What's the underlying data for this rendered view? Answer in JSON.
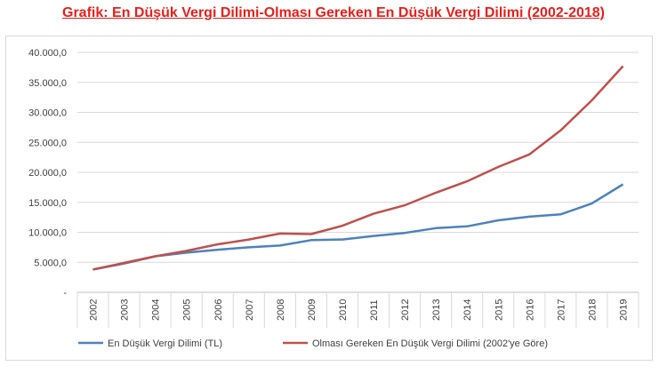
{
  "title": "Grafik: En Düşük Vergi Dilimi-Olması Gereken En Düşük Vergi Dilimi (2002-2018)",
  "chart_data": {
    "type": "line",
    "title": "Grafik: En Düşük Vergi Dilimi-Olması Gereken En Düşük Vergi Dilimi (2002-2018)",
    "xlabel": "",
    "ylabel": "",
    "x": [
      "2002",
      "2003",
      "2004",
      "2005",
      "2006",
      "2007",
      "2008",
      "2009",
      "2010",
      "2011",
      "2012",
      "2013",
      "2014",
      "2015",
      "2016",
      "2017",
      "2018",
      "2019"
    ],
    "ylim": [
      0,
      40000
    ],
    "y_ticks": [
      "-",
      "5.000,0",
      "10.000,0",
      "15.000,0",
      "20.000,0",
      "25.000,0",
      "30.000,0",
      "35.000,0",
      "40.000,0"
    ],
    "grid": true,
    "legend_position": "bottom",
    "series": [
      {
        "name": "En Düşük Vergi Dilimi (TL)",
        "color": "#4f81bd",
        "values": [
          3800,
          4800,
          6000,
          6600,
          7100,
          7500,
          7800,
          8700,
          8800,
          9400,
          9900,
          10700,
          11000,
          12000,
          12600,
          13000,
          14800,
          18000
        ]
      },
      {
        "name": "Olması Gereken En Düşük Vergi Dilimi (2002'ye Göre)",
        "color": "#c0504d",
        "values": [
          3800,
          4900,
          6000,
          6900,
          8000,
          8800,
          9800,
          9700,
          11100,
          13100,
          14500,
          16600,
          18500,
          20900,
          23000,
          27000,
          32000,
          37700
        ]
      }
    ]
  }
}
